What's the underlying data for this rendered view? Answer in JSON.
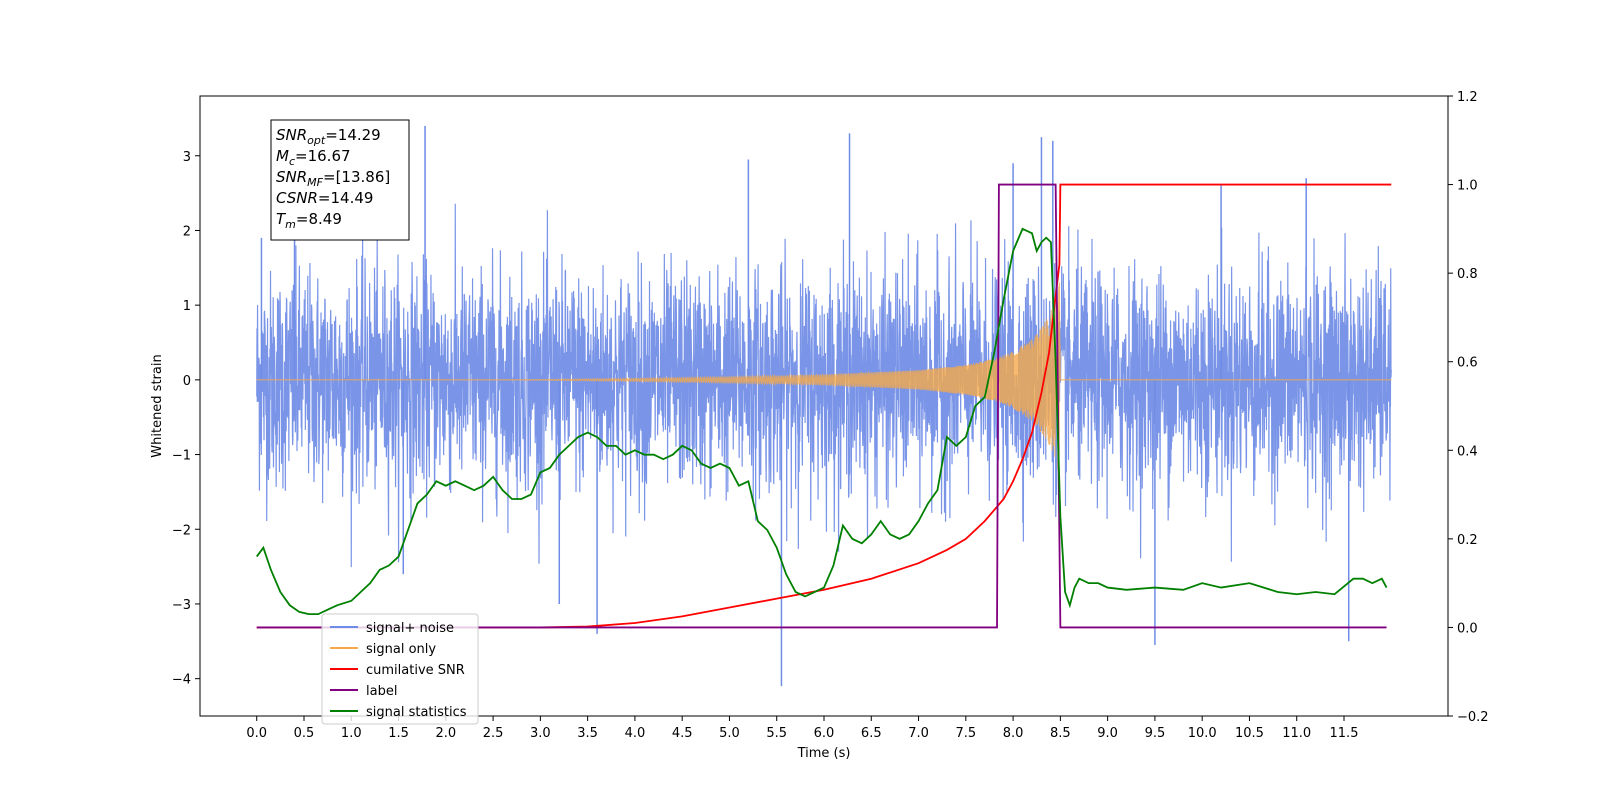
{
  "chart_data": {
    "type": "line",
    "xlabel": "Time (s)",
    "ylabel": "Whitened strain",
    "xlim": [
      -0.6,
      12.6
    ],
    "ylim": [
      -4.5,
      3.8
    ],
    "y2lim": [
      -0.2,
      1.2
    ],
    "x_ticks": [
      "0.0",
      "0.5",
      "1.0",
      "1.5",
      "2.0",
      "2.5",
      "3.0",
      "3.5",
      "4.0",
      "4.5",
      "5.0",
      "5.5",
      "6.0",
      "6.5",
      "7.0",
      "7.5",
      "8.0",
      "8.5",
      "9.0",
      "9.5",
      "10.0",
      "10.5",
      "11.0",
      "11.5"
    ],
    "y_ticks": [
      "3",
      "2",
      "1",
      "0",
      "−1",
      "−2",
      "−3",
      "−4"
    ],
    "y2_ticks": [
      "1.2",
      "1.0",
      "0.8",
      "0.6",
      "0.4",
      "0.2",
      "0.0",
      "−0.2"
    ],
    "grid": false,
    "legend_position": "lower-left",
    "colors": {
      "signal_noise": "#6f8ce6",
      "signal_only": "#f5a94a",
      "cumulative_snr": "#ff0000",
      "label": "#800080",
      "signal_statistics": "#008000"
    },
    "stats_box": [
      {
        "label": "SNR",
        "sub": "opt",
        "value": "=14.29"
      },
      {
        "label": "M",
        "sub": "c",
        "value": "=16.67"
      },
      {
        "label": "SNR",
        "sub": "MF",
        "value": "=[13.86]"
      },
      {
        "label": "CSNR",
        "sub": "",
        "value": "=14.49"
      },
      {
        "label": "T",
        "sub": "m",
        "value": "=8.49"
      }
    ],
    "series": [
      {
        "name": "signal+ noise",
        "axis": "left",
        "x_range": [
          0.0,
          12.0
        ],
        "envelope_low": -1.6,
        "envelope_high": 1.6,
        "outliers": [
          [
            0.05,
            1.9
          ],
          [
            0.4,
            2.1
          ],
          [
            1.78,
            3.4
          ],
          [
            1.55,
            -2.6
          ],
          [
            3.2,
            -3.0
          ],
          [
            3.6,
            -3.4
          ],
          [
            5.55,
            -4.1
          ],
          [
            6.27,
            3.3
          ],
          [
            8.0,
            2.9
          ],
          [
            8.3,
            3.25
          ],
          [
            8.42,
            3.2
          ],
          [
            9.5,
            -3.55
          ],
          [
            11.55,
            -3.5
          ],
          [
            5.2,
            2.95
          ],
          [
            10.2,
            2.6
          ],
          [
            11.1,
            2.7
          ]
        ]
      },
      {
        "name": "signal only",
        "axis": "left",
        "envelope": [
          [
            0.0,
            0.0
          ],
          [
            2.0,
            0.0
          ],
          [
            3.0,
            0.005
          ],
          [
            4.0,
            0.02
          ],
          [
            5.0,
            0.04
          ],
          [
            6.0,
            0.07
          ],
          [
            7.0,
            0.13
          ],
          [
            7.5,
            0.2
          ],
          [
            7.8,
            0.28
          ],
          [
            8.0,
            0.38
          ],
          [
            8.2,
            0.55
          ],
          [
            8.35,
            0.8
          ],
          [
            8.45,
            1.05
          ],
          [
            8.49,
            1.3
          ],
          [
            8.5,
            0.0
          ],
          [
            12.0,
            0.0
          ]
        ]
      },
      {
        "name": "cumilative SNR",
        "axis": "right",
        "x": [
          0.0,
          3.0,
          3.5,
          4.0,
          4.5,
          5.0,
          5.5,
          6.0,
          6.5,
          7.0,
          7.3,
          7.5,
          7.7,
          7.9,
          8.0,
          8.1,
          8.2,
          8.3,
          8.38,
          8.44,
          8.49,
          8.5,
          12.0
        ],
        "y": [
          0.0,
          0.0,
          0.002,
          0.01,
          0.025,
          0.045,
          0.065,
          0.085,
          0.11,
          0.145,
          0.175,
          0.2,
          0.24,
          0.29,
          0.33,
          0.38,
          0.44,
          0.53,
          0.62,
          0.73,
          0.82,
          1.0,
          1.0
        ]
      },
      {
        "name": "label",
        "axis": "right",
        "x": [
          0.0,
          7.83,
          7.85,
          8.45,
          8.5,
          11.95
        ],
        "y": [
          0.0,
          0.0,
          1.0,
          1.0,
          0.0,
          0.0
        ]
      },
      {
        "name": "signal statistics",
        "axis": "right",
        "x": [
          0.0,
          0.07,
          0.15,
          0.25,
          0.35,
          0.45,
          0.55,
          0.65,
          0.75,
          0.85,
          1.0,
          1.1,
          1.2,
          1.3,
          1.4,
          1.5,
          1.6,
          1.7,
          1.8,
          1.9,
          2.0,
          2.1,
          2.2,
          2.3,
          2.4,
          2.5,
          2.6,
          2.7,
          2.8,
          2.9,
          3.0,
          3.1,
          3.2,
          3.3,
          3.4,
          3.5,
          3.6,
          3.7,
          3.8,
          3.9,
          4.0,
          4.1,
          4.2,
          4.3,
          4.4,
          4.5,
          4.6,
          4.7,
          4.8,
          4.9,
          5.0,
          5.1,
          5.2,
          5.3,
          5.4,
          5.5,
          5.6,
          5.7,
          5.8,
          5.9,
          6.0,
          6.1,
          6.2,
          6.3,
          6.4,
          6.5,
          6.6,
          6.7,
          6.8,
          6.9,
          7.0,
          7.1,
          7.2,
          7.3,
          7.4,
          7.5,
          7.6,
          7.7,
          7.8,
          7.9,
          8.0,
          8.1,
          8.2,
          8.25,
          8.3,
          8.35,
          8.4,
          8.45,
          8.5,
          8.55,
          8.6,
          8.65,
          8.7,
          8.8,
          8.9,
          9.0,
          9.2,
          9.5,
          9.8,
          10.0,
          10.2,
          10.5,
          10.8,
          11.0,
          11.2,
          11.4,
          11.6,
          11.7,
          11.8,
          11.9,
          11.95
        ],
        "y": [
          0.16,
          0.18,
          0.13,
          0.08,
          0.05,
          0.035,
          0.03,
          0.03,
          0.04,
          0.05,
          0.06,
          0.08,
          0.1,
          0.13,
          0.14,
          0.16,
          0.22,
          0.28,
          0.3,
          0.33,
          0.32,
          0.33,
          0.32,
          0.31,
          0.32,
          0.34,
          0.31,
          0.29,
          0.29,
          0.3,
          0.35,
          0.36,
          0.39,
          0.41,
          0.43,
          0.44,
          0.43,
          0.41,
          0.41,
          0.39,
          0.4,
          0.39,
          0.39,
          0.38,
          0.39,
          0.41,
          0.4,
          0.37,
          0.36,
          0.37,
          0.36,
          0.32,
          0.33,
          0.24,
          0.22,
          0.18,
          0.12,
          0.08,
          0.07,
          0.08,
          0.09,
          0.14,
          0.23,
          0.2,
          0.19,
          0.21,
          0.24,
          0.21,
          0.2,
          0.21,
          0.24,
          0.28,
          0.31,
          0.43,
          0.41,
          0.43,
          0.5,
          0.52,
          0.62,
          0.74,
          0.85,
          0.9,
          0.89,
          0.85,
          0.87,
          0.88,
          0.87,
          0.6,
          0.25,
          0.08,
          0.05,
          0.09,
          0.11,
          0.1,
          0.1,
          0.09,
          0.085,
          0.09,
          0.085,
          0.1,
          0.09,
          0.1,
          0.08,
          0.075,
          0.08,
          0.075,
          0.11,
          0.11,
          0.1,
          0.11,
          0.09
        ]
      }
    ],
    "legend": [
      {
        "key": "signal_noise",
        "label": "signal+ noise"
      },
      {
        "key": "signal_only",
        "label": "signal only"
      },
      {
        "key": "cumulative_snr",
        "label": "cumilative SNR"
      },
      {
        "key": "label",
        "label": "label"
      },
      {
        "key": "signal_statistics",
        "label": "signal statistics"
      }
    ]
  }
}
